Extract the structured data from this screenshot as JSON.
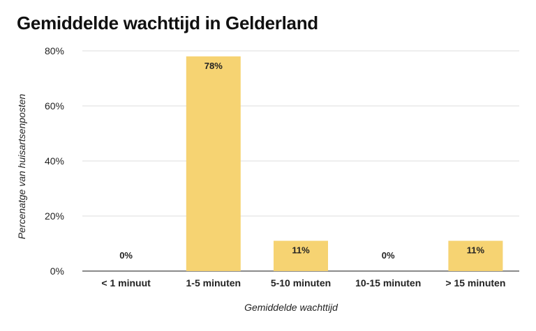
{
  "chart_data": {
    "type": "bar",
    "title": "Gemiddelde wachttijd in Gelderland",
    "xlabel": "Gemiddelde wachttijd",
    "ylabel": "Percenatge van huisartsenposten",
    "categories": [
      "< 1 minuut",
      "1-5 minuten",
      "5-10 minuten",
      "10-15 minuten",
      "> 15 minuten"
    ],
    "values": [
      0,
      78,
      11,
      0,
      11
    ],
    "data_labels": [
      "0%",
      "78%",
      "11%",
      "0%",
      "11%"
    ],
    "ylim": [
      0,
      80
    ],
    "yticks": [
      0,
      20,
      40,
      60,
      80
    ],
    "ytick_labels": [
      "0%",
      "20%",
      "40%",
      "60%",
      "80%"
    ],
    "grid": true,
    "legend": "none",
    "bar_color": "#f6d372",
    "grid_color": "#dddddd",
    "axis_color": "#444444"
  }
}
